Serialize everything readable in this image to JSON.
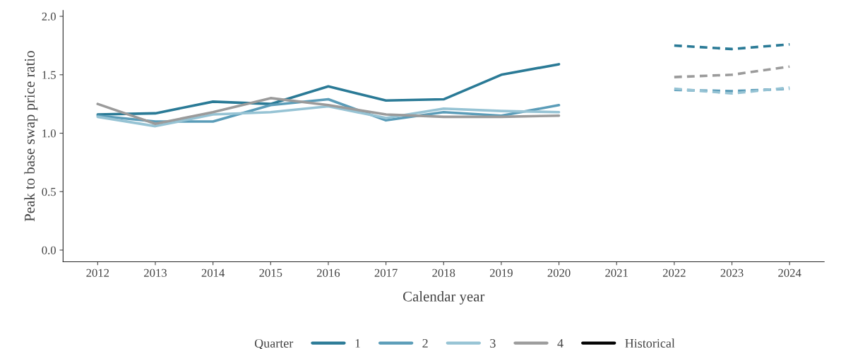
{
  "chart_data": {
    "type": "line",
    "xlabel": "Calendar year",
    "ylabel": "Peak to base swap price ratio",
    "legend_title": "Quarter",
    "legend": "bottom",
    "grid": false,
    "line_style": "solid",
    "marker": "none",
    "xlim": [
      2011.4,
      2024.6
    ],
    "xticks": [
      2012,
      2013,
      2014,
      2015,
      2016,
      2017,
      2018,
      2019,
      2020,
      2021,
      2022,
      2023,
      2024
    ],
    "ylim": [
      -0.1,
      2.05
    ],
    "yticks": [
      {
        "value": 0,
        "label": "0.0"
      },
      {
        "value": 0.5,
        "label": "0.5"
      },
      {
        "value": 1,
        "label": "1.0"
      },
      {
        "value": 1.5,
        "label": "1.5"
      },
      {
        "value": 2,
        "label": "2.0"
      }
    ],
    "annotations": [
      "Historical"
    ],
    "series": [
      {
        "name": "1",
        "color": "#2a7a96",
        "x": [
          2012,
          2013,
          2014,
          2015,
          2016,
          2017,
          2018,
          2019,
          2020
        ],
        "values": [
          1.16,
          1.17,
          1.27,
          1.25,
          1.4,
          1.28,
          1.29,
          1.5,
          1.59
        ]
      },
      {
        "name": "2",
        "color": "#5a9cb8",
        "x": [
          2012,
          2013,
          2014,
          2015,
          2016,
          2017,
          2018,
          2019,
          2020
        ],
        "values": [
          1.15,
          1.1,
          1.1,
          1.24,
          1.29,
          1.11,
          1.18,
          1.15,
          1.24
        ]
      },
      {
        "name": "3",
        "color": "#96c3d4",
        "x": [
          2012,
          2013,
          2014,
          2015,
          2016,
          2017,
          2018,
          2019,
          2020
        ],
        "values": [
          1.14,
          1.06,
          1.16,
          1.18,
          1.23,
          1.13,
          1.21,
          1.19,
          1.18
        ]
      },
      {
        "name": "4",
        "color": "#9b9b9b",
        "x": [
          2012,
          2013,
          2014,
          2015,
          2016,
          2017,
          2018,
          2019,
          2020
        ],
        "values": [
          1.25,
          1.08,
          1.18,
          1.3,
          1.24,
          1.16,
          1.14,
          1.14,
          1.15
        ]
      },
      {
        "color": "#2a7a96",
        "line_style": "dashed",
        "x": [
          2022,
          2023,
          2024
        ],
        "values": [
          1.75,
          1.72,
          1.76
        ]
      },
      {
        "color": "#5a9cb8",
        "line_style": "dashed",
        "x": [
          2022,
          2023,
          2024
        ],
        "values": [
          1.37,
          1.36,
          1.38
        ]
      },
      {
        "color": "#96c3d4",
        "line_style": "dashed",
        "x": [
          2022,
          2023,
          2024
        ],
        "values": [
          1.38,
          1.34,
          1.39
        ]
      },
      {
        "color": "#9b9b9b",
        "line_style": "dashed",
        "x": [
          2022,
          2023,
          2024
        ],
        "values": [
          1.48,
          1.5,
          1.57
        ]
      }
    ]
  }
}
